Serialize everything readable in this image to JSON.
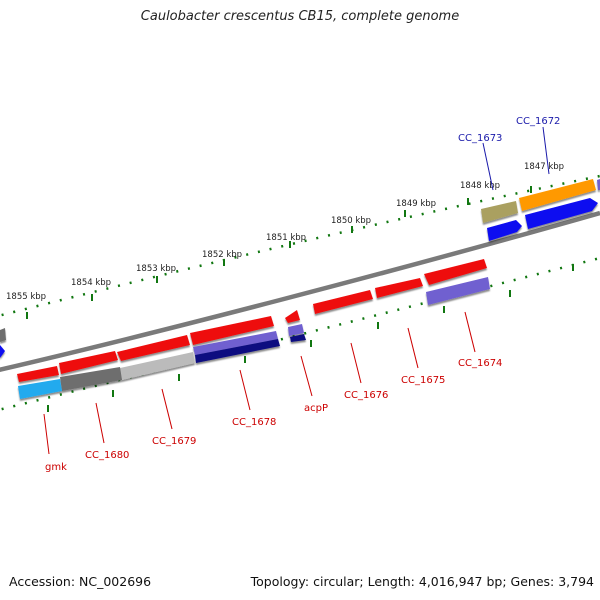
{
  "title": "Caulobacter crescentus CB15, complete genome",
  "footer": {
    "accession": "Accession: NC_002696",
    "topology": "Topology: circular; Length: 4,016,947 bp; Genes: 3,794"
  },
  "colors": {
    "red": "#ee1111",
    "blue": "#0a0af0",
    "purple": "#7060d0",
    "navy": "#0a0a80",
    "gray": "#6e6e6e",
    "lightgray": "#bbbbbb",
    "cyan": "#22aaee",
    "orange": "#ff9900",
    "khaki": "#aaa060",
    "backbone": "#808080",
    "ticks": "#117711",
    "label_red": "#cc0000",
    "label_blue": "#1a1aaa"
  },
  "kbp_labels": [
    "1847 kbp",
    "1848 kbp",
    "1849 kbp",
    "1850 kbp",
    "1851 kbp",
    "1852 kbp",
    "1853 kbp",
    "1854 kbp",
    "1855 kbp"
  ],
  "gene_labels": {
    "cc1672": "CC_1672",
    "cc1673": "CC_1673",
    "cc1674": "CC_1674",
    "cc1675": "CC_1675",
    "cc1676": "CC_1676",
    "acpp": "acpP",
    "cc1678": "CC_1678",
    "cc1679": "CC_1679",
    "cc1680": "CC_1680",
    "gmk": "gmk"
  }
}
